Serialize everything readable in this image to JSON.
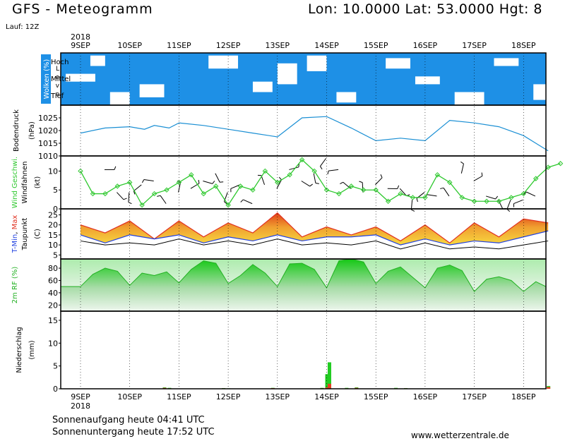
{
  "header": {
    "title": "GFS - Meteogramm",
    "location": "Lon: 10.0000 Lat: 53.0000 Hgt: 8",
    "run": "Lauf: 12Z"
  },
  "footer": {
    "sunrise": "Sonnenaufgang heute 04:41 UTC",
    "sunset": "Sonnenuntergang heute 17:52 UTC",
    "website": "www.wetterzentrale.de"
  },
  "date_axis": {
    "year": "2018",
    "ticks": [
      "9SEP",
      "10SEP",
      "11SEP",
      "12SEP",
      "13SEP",
      "14SEP",
      "15SEP",
      "16SEP",
      "17SEP",
      "18SEP"
    ]
  },
  "colors": {
    "cloud": "#1e90e6",
    "pressure": "#1a8fd4",
    "wind": "#2ec82e",
    "tmax": "#e03020",
    "tmin": "#2040e0",
    "dewpoint": "#000000",
    "rh": "#22b022",
    "precip_rain": "#22cc22",
    "precip_conv": "#e04020"
  },
  "chart_data": [
    {
      "type": "heatmap",
      "ylabel": "Wolken (%)",
      "level_title": "Level",
      "levels": [
        "Hoch",
        "Mittel",
        "Tief"
      ],
      "note": "cloud cover shown as blue fill per level over time"
    },
    {
      "type": "line",
      "ylabel": "Bodendruck",
      "unit": "(hPa)",
      "yticks": [
        1010,
        1015,
        1020,
        1025
      ],
      "ylim": [
        1010,
        1030
      ],
      "x_days": [
        0,
        0.5,
        1,
        1.3,
        1.5,
        1.8,
        2,
        2.5,
        3,
        3.5,
        4,
        4.5,
        5,
        5.5,
        6,
        6.5,
        7,
        7.5,
        8,
        8.5,
        9,
        9.5
      ],
      "values": [
        1019,
        1021,
        1021.5,
        1020.5,
        1022,
        1021,
        1023,
        1022,
        1020.5,
        1019,
        1017.5,
        1025,
        1025.5,
        1021,
        1016,
        1017,
        1016,
        1024,
        1023,
        1021.5,
        1018,
        1012
      ]
    },
    {
      "type": "line",
      "ylabel": "Wind Geschwi.",
      "ylabel2": "Windfahnen",
      "unit": "(kt)",
      "yticks": [
        0,
        5,
        10
      ],
      "ylim": [
        0,
        14
      ],
      "x_days": [
        0,
        0.25,
        0.5,
        0.75,
        1,
        1.25,
        1.5,
        1.75,
        2,
        2.25,
        2.5,
        2.75,
        3,
        3.25,
        3.5,
        3.75,
        4,
        4.25,
        4.5,
        4.75,
        5,
        5.25,
        5.5,
        5.75,
        6,
        6.25,
        6.5,
        6.75,
        7,
        7.25,
        7.5,
        7.75,
        8,
        8.25,
        8.5,
        8.75,
        9,
        9.25,
        9.5,
        9.75
      ],
      "values": [
        10,
        4,
        4,
        6,
        7,
        1,
        4,
        5,
        7,
        9,
        4,
        6,
        1,
        6,
        5,
        10,
        7,
        9,
        13,
        10,
        5,
        4,
        6,
        5,
        5,
        2,
        4,
        3,
        3,
        9,
        7,
        3,
        2,
        2,
        2,
        3,
        4,
        8,
        11,
        12
      ]
    },
    {
      "type": "area",
      "ylabel_parts": [
        "T-Min",
        ", ",
        "Max"
      ],
      "ylabel2": "Taupunkt",
      "unit": "(C)",
      "yticks": [
        5,
        10,
        15,
        20,
        25
      ],
      "ylim": [
        3,
        28
      ],
      "x_days": [
        0,
        0.5,
        1,
        1.5,
        2,
        2.5,
        3,
        3.5,
        4,
        4.5,
        5,
        5.5,
        6,
        6.5,
        7,
        7.5,
        8,
        8.5,
        9,
        9.5
      ],
      "tmax": [
        20,
        16,
        22,
        13,
        22,
        14,
        21,
        16,
        26,
        14,
        19,
        15,
        19,
        12,
        20,
        11,
        21,
        14,
        23,
        21
      ],
      "tmin": [
        15,
        11,
        15,
        13,
        15,
        11,
        14,
        12,
        15,
        12,
        14,
        14,
        15,
        10,
        13,
        10,
        12,
        11,
        14,
        17
      ],
      "dewpoint": [
        12,
        10,
        11,
        10,
        13,
        10,
        12,
        10,
        13,
        10,
        11,
        10,
        12,
        8,
        11,
        8,
        9,
        8,
        10,
        12
      ]
    },
    {
      "type": "area",
      "ylabel": "2m RF (%)",
      "yticks": [
        20,
        40,
        60,
        80
      ],
      "ylim": [
        10,
        95
      ],
      "x_days": [
        0,
        0.25,
        0.5,
        0.75,
        1,
        1.25,
        1.5,
        1.75,
        2,
        2.25,
        2.5,
        2.75,
        3,
        3.25,
        3.5,
        3.75,
        4,
        4.25,
        4.5,
        4.75,
        5,
        5.25,
        5.5,
        5.75,
        6,
        6.25,
        6.5,
        6.75,
        7,
        7.25,
        7.5,
        7.75,
        8,
        8.25,
        8.5,
        8.75,
        9,
        9.25,
        9.5,
        9.75
      ],
      "values": [
        50,
        70,
        80,
        75,
        52,
        72,
        68,
        74,
        56,
        78,
        92,
        88,
        55,
        68,
        86,
        72,
        50,
        87,
        88,
        78,
        48,
        92,
        95,
        90,
        55,
        75,
        82,
        65,
        48,
        80,
        85,
        76,
        42,
        62,
        66,
        60,
        42,
        58,
        68,
        50
      ]
    },
    {
      "type": "bar",
      "ylabel": "Niederschlag",
      "unit": "(mm)",
      "yticks": [
        0,
        5,
        10,
        15
      ],
      "ylim": [
        0,
        17
      ],
      "x_days": [
        1.7,
        1.8,
        2.9,
        3.0,
        3.9,
        4.9,
        5.0,
        5.05,
        5.4,
        5.6,
        6.4,
        6.6,
        9.5
      ],
      "rain": [
        0.3,
        0.2,
        0.15,
        0.1,
        0.2,
        0.2,
        3.2,
        5.8,
        0.2,
        0.3,
        0.2,
        0.15,
        0.6
      ],
      "conv": [
        0.2,
        0.1,
        0.1,
        0.05,
        0.15,
        0.1,
        0.3,
        1.1,
        0.1,
        0.2,
        0.1,
        0.1,
        0.4
      ]
    }
  ]
}
